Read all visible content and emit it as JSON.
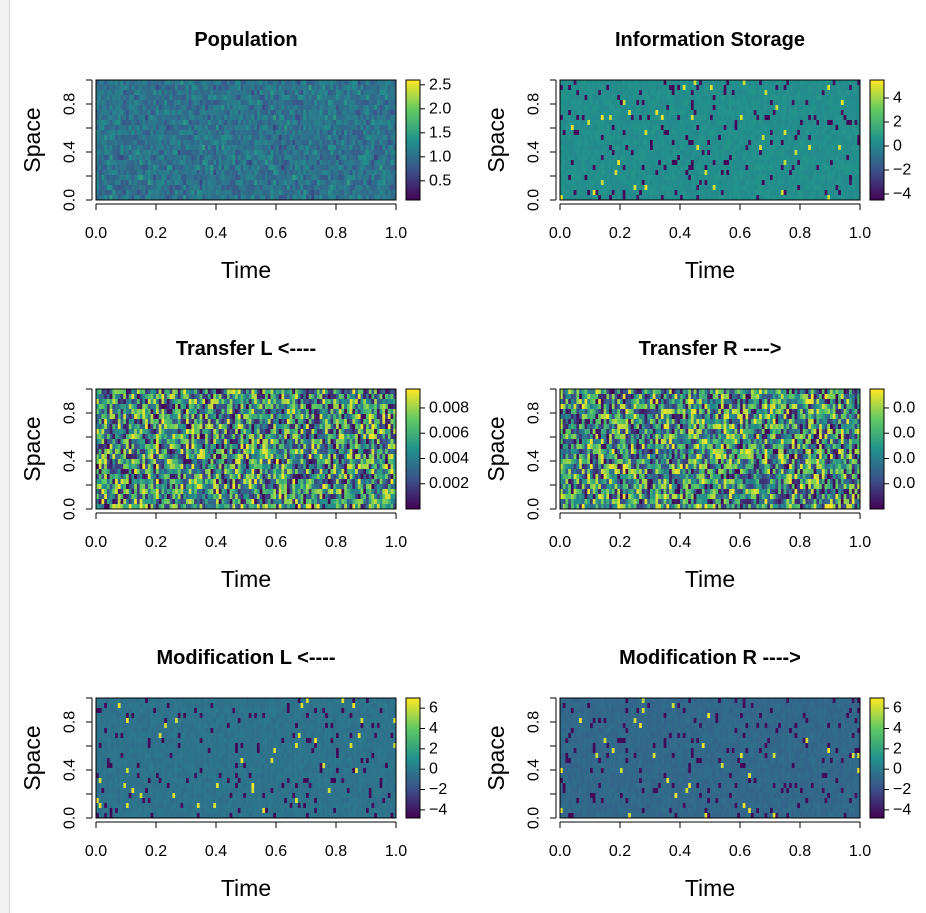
{
  "colors": {
    "palette": "viridis",
    "viridis_stops": [
      "#440154",
      "#3b528b",
      "#21918c",
      "#5ec962",
      "#fde725"
    ],
    "axis": "#000000",
    "background": "#ffffff"
  },
  "chart_data": [
    {
      "id": "population",
      "type": "heatmap",
      "title": "Population",
      "xlabel": "Time",
      "ylabel": "Space",
      "xlim": [
        0,
        1
      ],
      "ylim": [
        0,
        1
      ],
      "x_ticks": [
        "0.0",
        "0.2",
        "0.4",
        "0.6",
        "0.8",
        "1.0"
      ],
      "y_ticks": [
        "0.0",
        "0.4",
        "0.8"
      ],
      "colorbar": {
        "min": 0.1,
        "max": 2.6,
        "ticks": [
          "0.5",
          "1.0",
          "1.5",
          "2.0",
          "2.5"
        ],
        "tick_values": [
          0.5,
          1.0,
          1.5,
          2.0,
          2.5
        ]
      },
      "pattern": "dense",
      "typical_range": [
        0.5,
        1.6
      ]
    },
    {
      "id": "information-storage",
      "type": "heatmap",
      "title": "Information Storage",
      "xlabel": "Time",
      "ylabel": "Space",
      "xlim": [
        0,
        1
      ],
      "ylim": [
        0,
        1
      ],
      "x_ticks": [
        "0.0",
        "0.2",
        "0.4",
        "0.6",
        "0.8",
        "1.0"
      ],
      "y_ticks": [
        "0.0",
        "0.4",
        "0.8"
      ],
      "colorbar": {
        "min": -4.5,
        "max": 5.5,
        "ticks": [
          "4",
          "2",
          "0",
          "−2",
          "−4"
        ],
        "tick_values": [
          4,
          2,
          0,
          -2,
          -4
        ]
      },
      "pattern": "sparse",
      "typical_value": 0.4
    },
    {
      "id": "transfer-l",
      "type": "heatmap",
      "title": "Transfer L <----",
      "xlabel": "Time",
      "ylabel": "Space",
      "xlim": [
        0,
        1
      ],
      "ylim": [
        0,
        1
      ],
      "x_ticks": [
        "0.0",
        "0.2",
        "0.4",
        "0.6",
        "0.8",
        "1.0"
      ],
      "y_ticks": [
        "0.0",
        "0.4",
        "0.8"
      ],
      "colorbar": {
        "min": 0.0,
        "max": 0.0095,
        "ticks": [
          "0.008",
          "0.006",
          "0.004",
          "0.002"
        ],
        "tick_values": [
          0.008,
          0.006,
          0.004,
          0.002
        ]
      },
      "pattern": "dense",
      "typical_range": [
        0.0,
        0.0095
      ]
    },
    {
      "id": "transfer-r",
      "type": "heatmap",
      "title": "Transfer R ---->",
      "xlabel": "Time",
      "ylabel": "Space",
      "xlim": [
        0,
        1
      ],
      "ylim": [
        0,
        1
      ],
      "x_ticks": [
        "0.0",
        "0.2",
        "0.4",
        "0.6",
        "0.8",
        "1.0"
      ],
      "y_ticks": [
        "0.0",
        "0.4",
        "0.8"
      ],
      "colorbar": {
        "min": 0.0,
        "max": 0.0095,
        "ticks": [
          "0.0",
          "0.0",
          "0.0",
          "0.0"
        ],
        "tick_values": [
          0.008,
          0.006,
          0.004,
          0.002
        ]
      },
      "pattern": "dense",
      "typical_range": [
        0.0,
        0.0095
      ]
    },
    {
      "id": "modification-l",
      "type": "heatmap",
      "title": "Modification L <----",
      "xlabel": "Time",
      "ylabel": "Space",
      "xlim": [
        0,
        1
      ],
      "ylim": [
        0,
        1
      ],
      "x_ticks": [
        "0.0",
        "0.2",
        "0.4",
        "0.6",
        "0.8",
        "1.0"
      ],
      "y_ticks": [
        "0.0",
        "0.4",
        "0.8"
      ],
      "colorbar": {
        "min": -4.8,
        "max": 7.0,
        "ticks": [
          "6",
          "4",
          "2",
          "0",
          "−2",
          "−4"
        ],
        "tick_values": [
          6,
          4,
          2,
          0,
          -2,
          -4
        ]
      },
      "pattern": "sparse",
      "typical_value": -0.3
    },
    {
      "id": "modification-r",
      "type": "heatmap",
      "title": "Modification R ---->",
      "xlabel": "Time",
      "ylabel": "Space",
      "xlim": [
        0,
        1
      ],
      "ylim": [
        0,
        1
      ],
      "x_ticks": [
        "0.0",
        "0.2",
        "0.4",
        "0.6",
        "0.8",
        "1.0"
      ],
      "y_ticks": [
        "0.0",
        "0.4",
        "0.8"
      ],
      "colorbar": {
        "min": -4.8,
        "max": 7.0,
        "ticks": [
          "6",
          "4",
          "2",
          "0",
          "−2",
          "−4"
        ],
        "tick_values": [
          6,
          4,
          2,
          0,
          -2,
          -4
        ]
      },
      "pattern": "sparse",
      "typical_value": -0.8
    }
  ]
}
